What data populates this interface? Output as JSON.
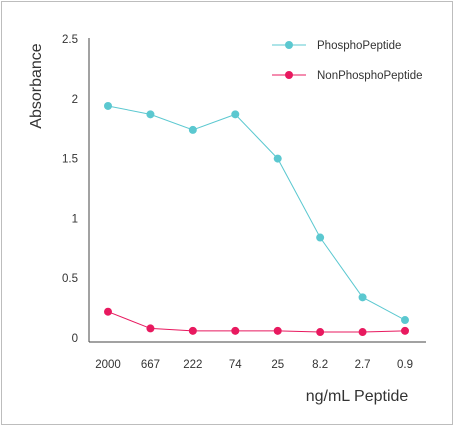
{
  "chart_data": {
    "type": "line",
    "title": "",
    "xlabel": "ng/mL Peptide",
    "ylabel": "Absorbance",
    "categories": [
      "2000",
      "667",
      "222",
      "74",
      "25",
      "8.2",
      "2.7",
      "0.9"
    ],
    "ylim": [
      0,
      2.5
    ],
    "yticks": [
      "0",
      "0.5",
      "1",
      "1.5",
      "2",
      "2.5"
    ],
    "grid": false,
    "legend_position": "top-right",
    "series": [
      {
        "name": "PhosphoPeptide",
        "color": "#5bc8d0",
        "values": [
          1.94,
          1.87,
          1.74,
          1.87,
          1.5,
          0.84,
          0.34,
          0.15
        ]
      },
      {
        "name": "NonPhosphoPeptide",
        "color": "#e8195f",
        "values": [
          0.22,
          0.08,
          0.06,
          0.06,
          0.06,
          0.05,
          0.05,
          0.06
        ]
      }
    ]
  }
}
